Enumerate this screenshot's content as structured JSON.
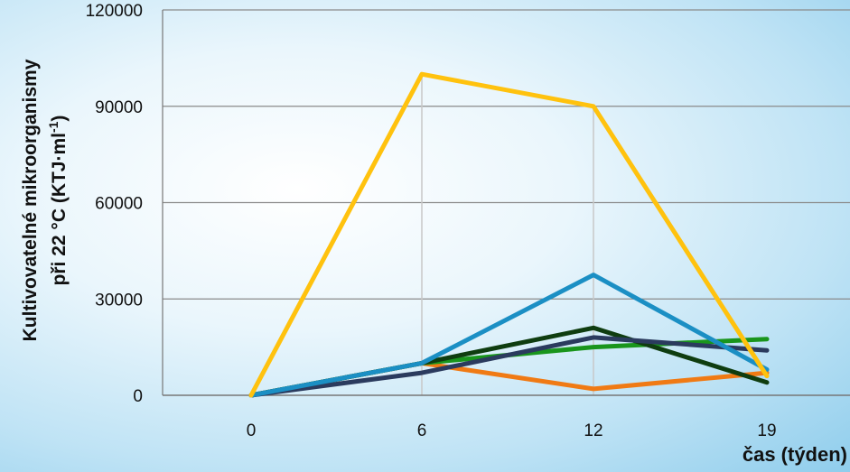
{
  "chart_data": {
    "type": "line",
    "title": "",
    "xlabel": "čas (týden)",
    "ylabel_line1": "Kultivovatelné mikroorganismy",
    "ylabel_line2": "při 22 °C (KTJ·ml",
    "ylabel_sup": "-1",
    "ylabel_close": ")",
    "x": [
      "0",
      "6",
      "12",
      "19"
    ],
    "ylim": [
      0,
      120000
    ],
    "yticks": [
      "0",
      "30000",
      "60000",
      "90000",
      "120000"
    ],
    "ytick_values": [
      0,
      30000,
      60000,
      90000,
      120000
    ],
    "grid": true,
    "series": [
      {
        "color": "#ffc20e",
        "values": [
          0,
          100000,
          90000,
          6000
        ]
      },
      {
        "color": "#1b8fc4",
        "values": [
          0,
          10000,
          37500,
          8000
        ]
      },
      {
        "color": "#2b3b5e",
        "values": [
          0,
          7000,
          18000,
          14000
        ]
      },
      {
        "color": "#0f3d10",
        "values": [
          0,
          10000,
          21000,
          4000
        ]
      },
      {
        "color": "#19951c",
        "values": [
          0,
          10000,
          15000,
          17500
        ]
      },
      {
        "color": "#f07a14",
        "values": [
          0,
          10000,
          2000,
          7000
        ]
      }
    ]
  }
}
